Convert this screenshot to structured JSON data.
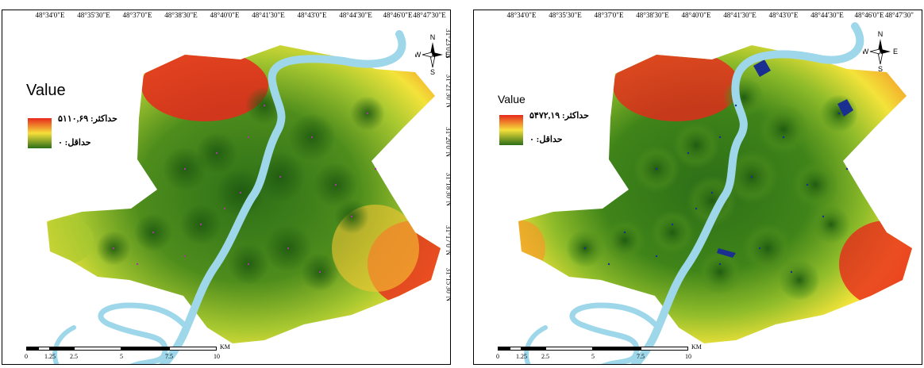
{
  "maps": [
    {
      "lon_labels": [
        "48°34'0\"E",
        "48°35'30\"E",
        "48°37'0\"E",
        "48°38'30\"E",
        "48°40'0\"E",
        "48°41'30\"E",
        "48°43'0\"E",
        "48°44'30\"E",
        "48°46'0\"E",
        "48°47'30\"E"
      ],
      "lat_labels": [
        "31°23'0\"N",
        "31°21'30\"N",
        "31°20'0\"N",
        "31°18'30\"N",
        "31°17'0\"N",
        "31°15'30\"N"
      ],
      "legend_title": "Value",
      "legend_max": "حداکثر: ۵۱۱۰,۶۹",
      "legend_min": "حداقل: ۰",
      "point_color": "#a23b9c"
    },
    {
      "lon_labels": [
        "48°34'0\"E",
        "48°35'30\"E",
        "48°37'0\"E",
        "48°38'30\"E",
        "48°40'0\"E",
        "48°41'30\"E",
        "48°43'0\"E",
        "48°44'30\"E",
        "48°46'0\"E",
        "48°47'30\""
      ],
      "lat_labels": [],
      "legend_title": "Value",
      "legend_max": "حداکثر: ۵۴۷۲,۱۹",
      "legend_min": "حداقل: ۰",
      "point_color": "#1a2f8f"
    }
  ],
  "north_arrow": {
    "n": "N",
    "s": "S",
    "e": "E",
    "w": "W",
    "icon": "north-arrow-icon"
  },
  "scalebar": {
    "ticks": [
      "0",
      "1.25",
      "2.5",
      "5",
      "7.5",
      "10"
    ],
    "unit": "KM"
  },
  "colors": {
    "high": "#e8281c",
    "mid": "#f5e03a",
    "low": "#2c6e17",
    "river": "#9ed7ea"
  }
}
